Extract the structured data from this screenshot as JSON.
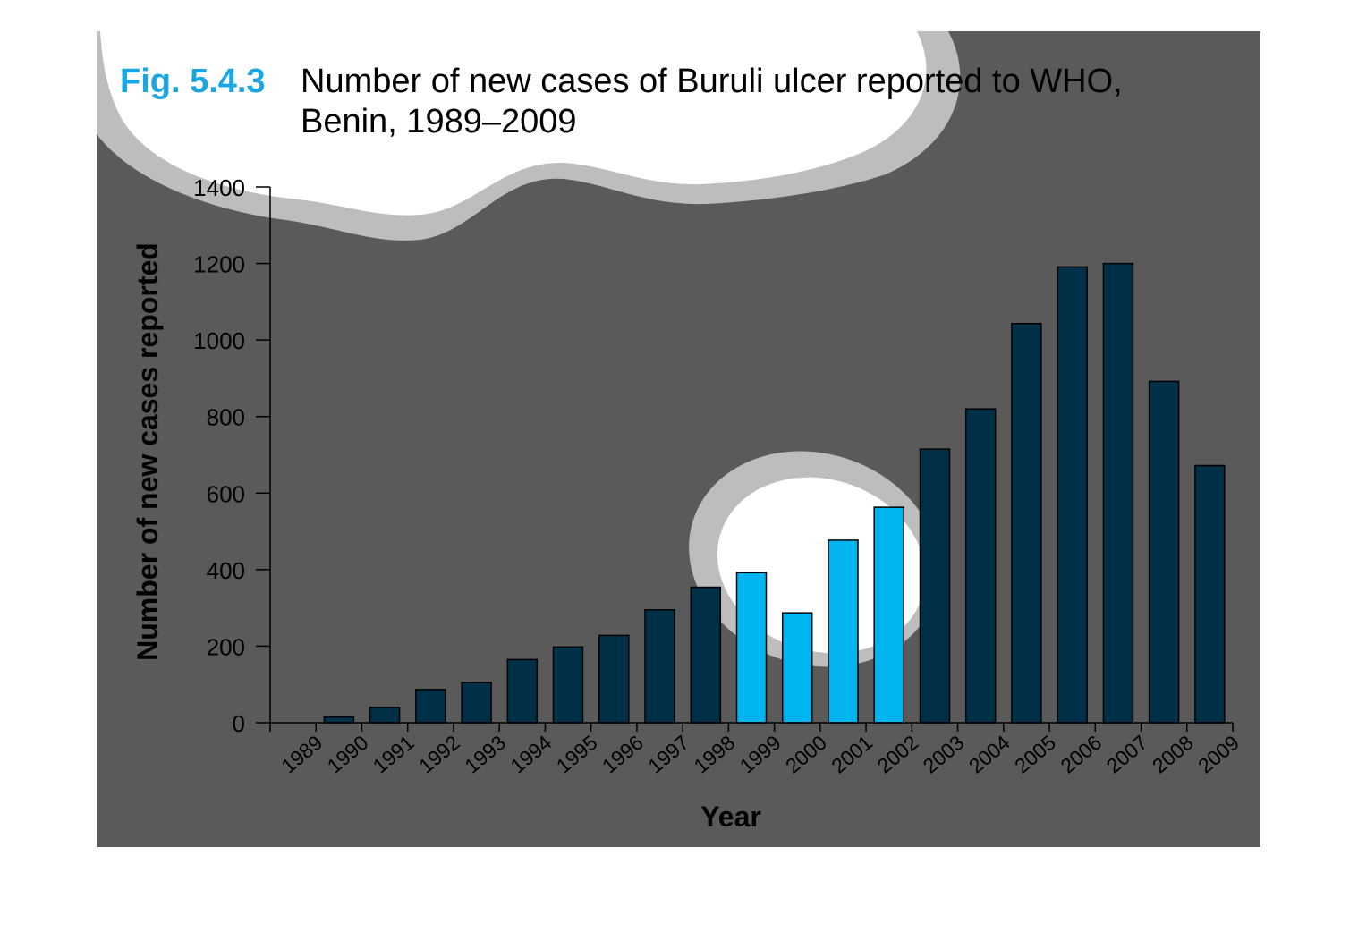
{
  "figure": {
    "label": "Fig. 5.4.3",
    "title_line1": "Number of new cases of Buruli ulcer reported to WHO,",
    "title_line2": "Benin, 1989–2009"
  },
  "colors": {
    "panel": "#5a5a5a",
    "bar": "#002f48",
    "bar_highlight": "#00b4f0",
    "bar_stroke": "#000000",
    "label_accent": "#1aa6e0",
    "blob_fill": "#ffffff",
    "blob_rim": "#bdbdbd"
  },
  "chart_data": {
    "type": "bar",
    "title": "Number of new cases of Buruli ulcer reported to WHO, Benin, 1989–2009",
    "xlabel": "Year",
    "ylabel": "Number of new cases reported",
    "categories": [
      "1989",
      "1990",
      "1991",
      "1992",
      "1993",
      "1994",
      "1995",
      "1996",
      "1997",
      "1998",
      "1999",
      "2000",
      "2001",
      "2002",
      "2003",
      "2004",
      "2005",
      "2006",
      "2007",
      "2008",
      "2009"
    ],
    "values": [
      0,
      15,
      40,
      87,
      105,
      165,
      198,
      228,
      295,
      354,
      392,
      287,
      477,
      563,
      715,
      820,
      1043,
      1191,
      1200,
      892,
      672
    ],
    "highlighted_categories": [
      "1999",
      "2000",
      "2001",
      "2002"
    ],
    "ylim": [
      0,
      1400
    ],
    "yticks": [
      0,
      200,
      400,
      600,
      800,
      1000,
      1200,
      1400
    ],
    "grid": false,
    "legend": "none"
  }
}
